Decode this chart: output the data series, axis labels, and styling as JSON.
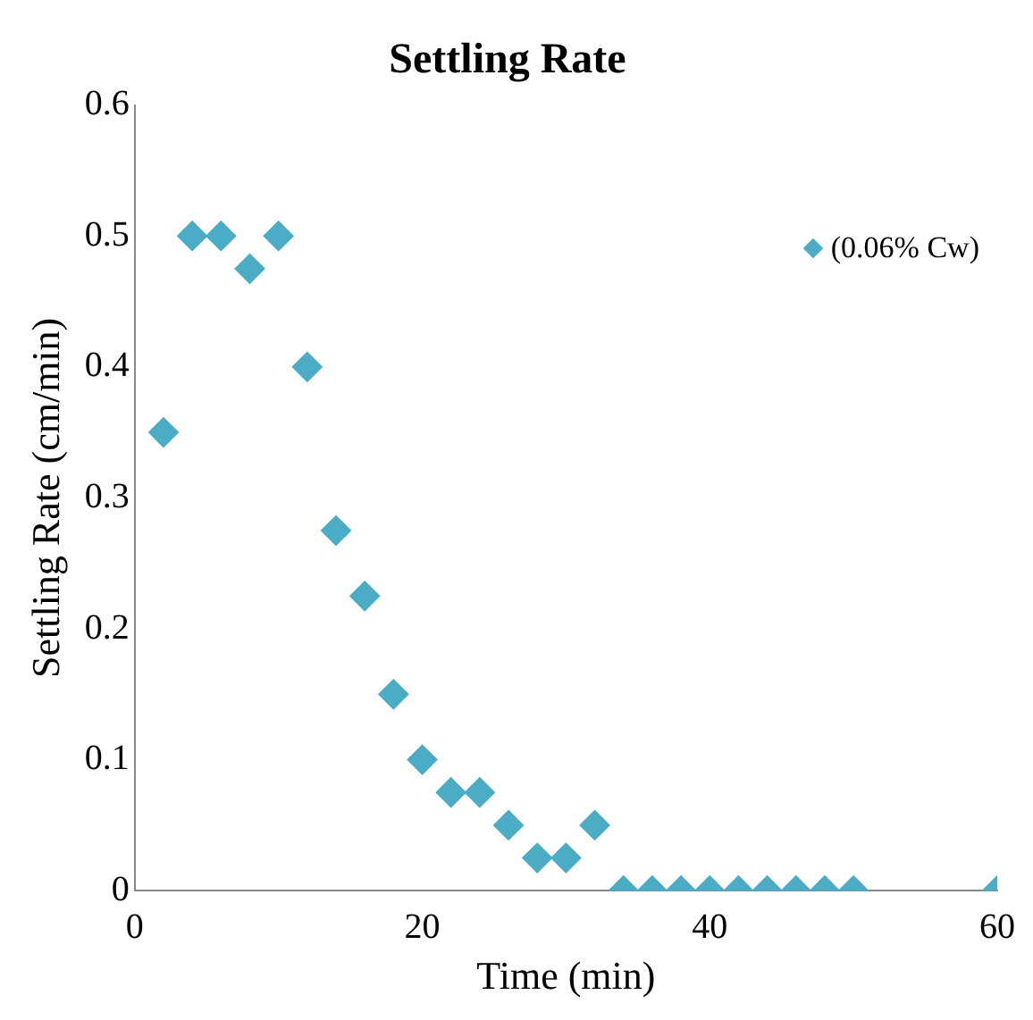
{
  "chart_data": {
    "type": "scatter",
    "title": "Settling Rate",
    "xlabel": "Time (min)",
    "ylabel": "Settling Rate (cm/min)",
    "x": [
      2,
      4,
      6,
      8,
      10,
      12,
      14,
      16,
      18,
      20,
      22,
      24,
      26,
      28,
      30,
      32,
      34,
      36,
      38,
      40,
      42,
      44,
      46,
      48,
      50,
      60
    ],
    "series": [
      {
        "name": "(0.06% Cw)",
        "color": "#4bacc6",
        "values": [
          0.35,
          0.5,
          0.5,
          0.475,
          0.5,
          0.4,
          0.275,
          0.225,
          0.15,
          0.1,
          0.075,
          0.075,
          0.05,
          0.025,
          0.025,
          0.05,
          0,
          0,
          0,
          0,
          0,
          0,
          0,
          0,
          0,
          0
        ]
      }
    ],
    "xlim": [
      0,
      60
    ],
    "xticks": [
      0,
      20,
      40,
      60
    ],
    "ylim": [
      0,
      0.6
    ],
    "yticks": [
      0,
      0.1,
      0.2,
      0.3,
      0.4,
      0.5,
      0.6
    ],
    "grid": false,
    "legend": "top right",
    "marker": "diamond"
  }
}
